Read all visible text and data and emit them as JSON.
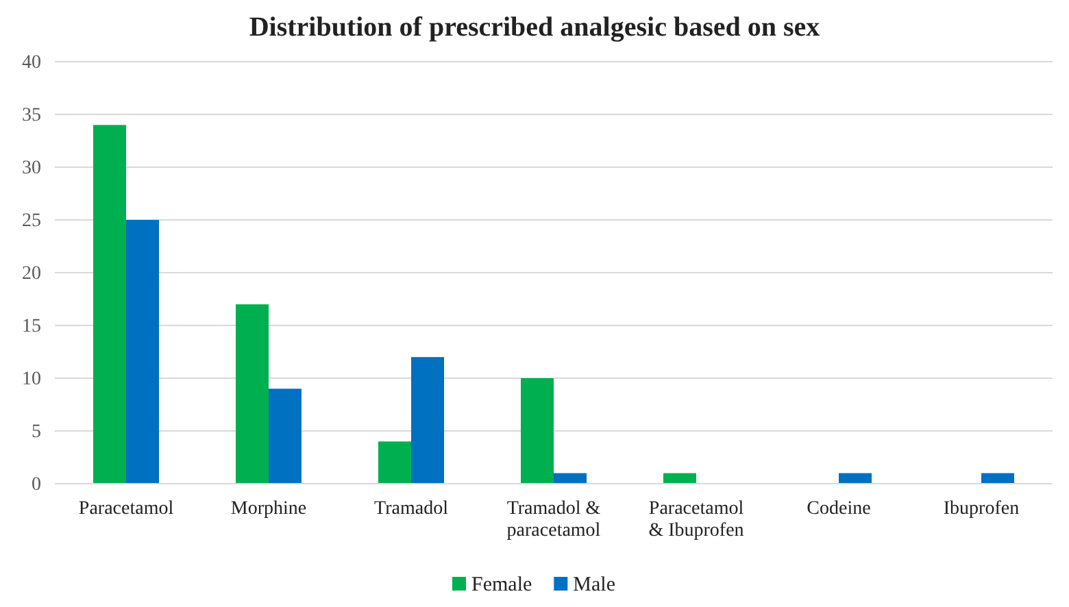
{
  "chart_data": {
    "type": "bar",
    "title": "Distribution of prescribed analgesic based on sex",
    "categories": [
      "Paracetamol",
      "Morphine",
      "Tramadol",
      "Tramadol & paracetamol",
      "Paracetamol & Ibuprofen",
      "Codeine",
      "Ibuprofen"
    ],
    "series": [
      {
        "name": "Female",
        "color": "#00b050",
        "values": [
          34,
          17,
          4,
          10,
          1,
          0,
          0
        ]
      },
      {
        "name": "Male",
        "color": "#0070c0",
        "values": [
          25,
          9,
          12,
          1,
          0,
          1,
          1
        ]
      }
    ],
    "ylim": [
      0,
      40
    ],
    "yticks": [
      0,
      5,
      10,
      15,
      20,
      25,
      30,
      35,
      40
    ],
    "grid": "y",
    "legend": "bottom"
  }
}
